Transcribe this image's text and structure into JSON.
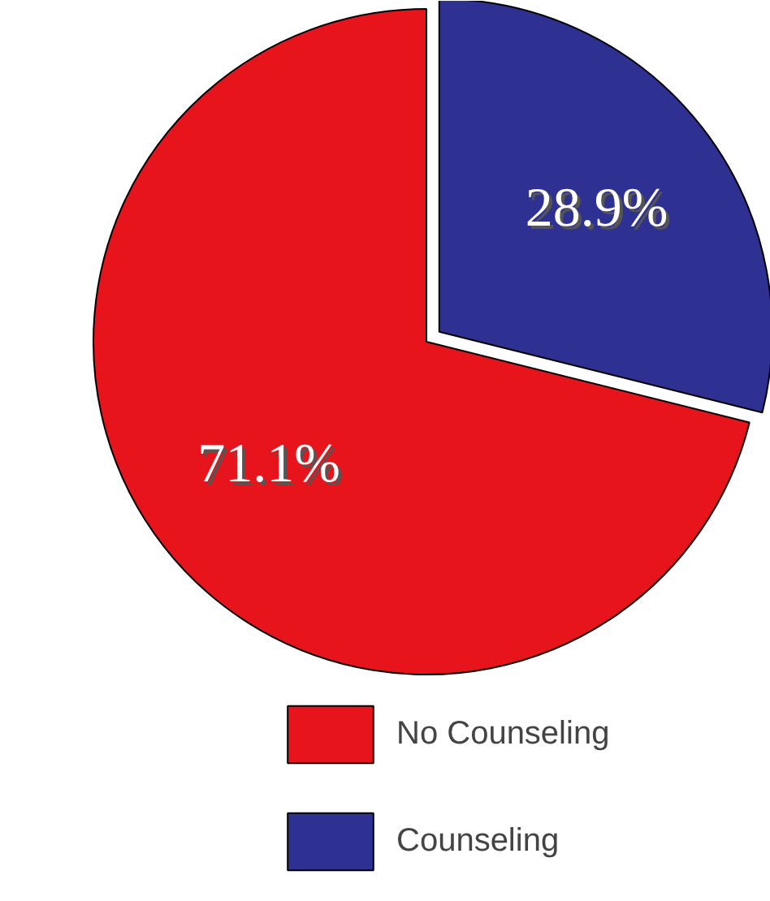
{
  "chart_data": {
    "type": "pie",
    "categories": [
      "No Counseling",
      "Counseling"
    ],
    "values": [
      71.1,
      28.9
    ],
    "colors": [
      "#e8141c",
      "#2e3192"
    ],
    "value_labels": [
      "71.1%",
      "28.9%"
    ],
    "legend": "bottom"
  }
}
